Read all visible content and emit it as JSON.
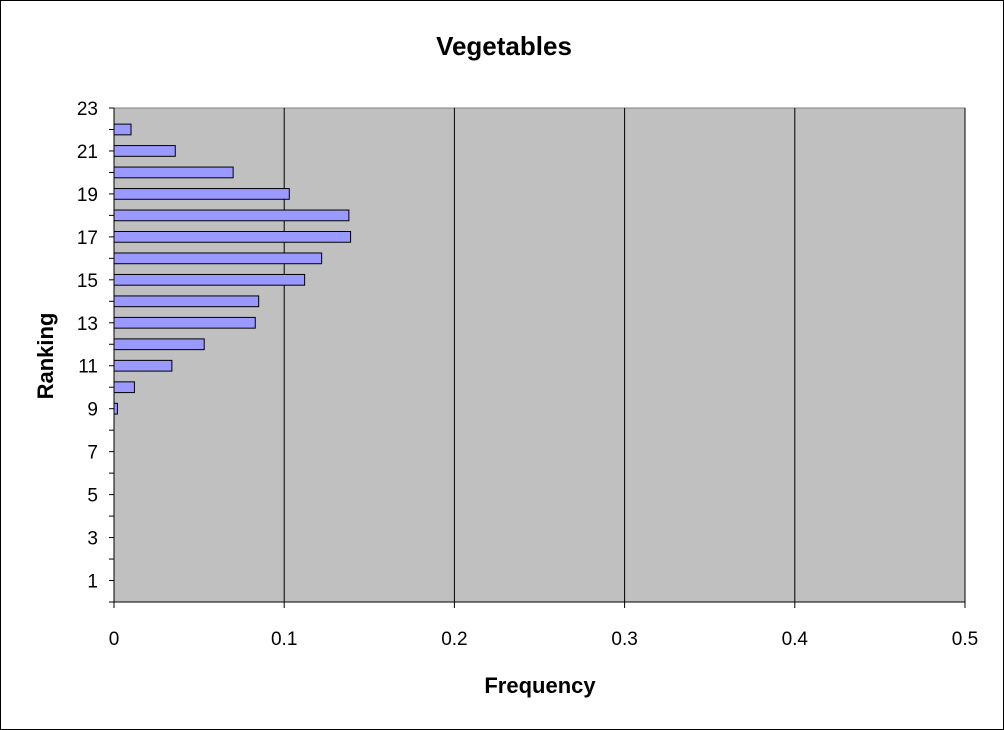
{
  "chart_data": {
    "type": "bar",
    "orientation": "horizontal",
    "title": "Vegetables",
    "xlabel": "Frequency",
    "ylabel": "Ranking",
    "xlim": [
      0,
      0.5
    ],
    "x_ticks": [
      "0",
      "0.1",
      "0.2",
      "0.3",
      "0.4",
      "0.5"
    ],
    "ylim": [
      0,
      23
    ],
    "y_ticks": [
      "1",
      "3",
      "5",
      "7",
      "9",
      "11",
      "13",
      "15",
      "17",
      "19",
      "21",
      "23"
    ],
    "grid": "vertical",
    "legend": "none",
    "categories": [
      1,
      2,
      3,
      4,
      5,
      6,
      7,
      8,
      9,
      10,
      11,
      12,
      13,
      14,
      15,
      16,
      17,
      18,
      19,
      20,
      21,
      22
    ],
    "values": [
      0,
      0,
      0,
      0,
      0,
      0,
      0,
      0,
      0.002,
      0.012,
      0.034,
      0.053,
      0.083,
      0.085,
      0.112,
      0.122,
      0.139,
      0.138,
      0.103,
      0.07,
      0.036,
      0.01
    ],
    "colors": {
      "bar_fill": "#9999ff",
      "bar_stroke": "#000000",
      "plot_background": "#c0c0c0",
      "grid": "#000000"
    }
  }
}
